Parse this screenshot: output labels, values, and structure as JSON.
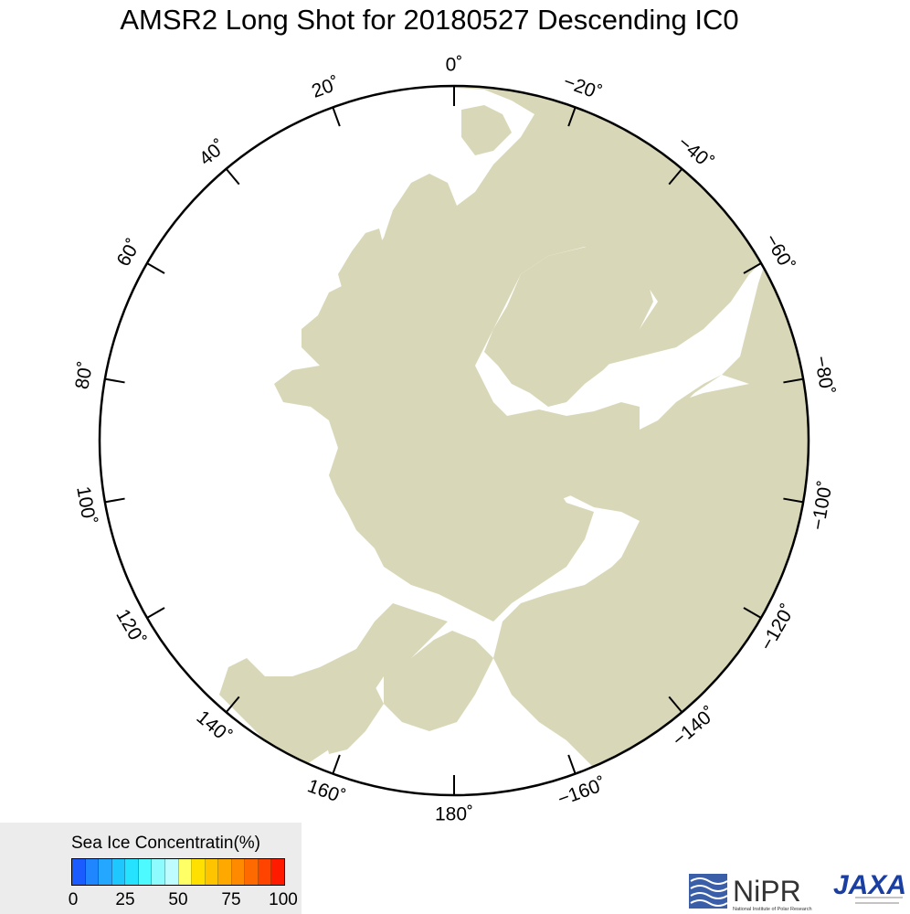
{
  "title": "AMSR2 Long Shot for 20180527 Descending IC0",
  "map": {
    "land_color": "#d8d8b8",
    "ocean_ice_color": "#ffffff",
    "longitude_labels": [
      "0˚",
      "20˚",
      "40˚",
      "60˚",
      "80˚",
      "100˚",
      "120˚",
      "140˚",
      "160˚",
      "180˚",
      "−160˚",
      "−140˚",
      "−120˚",
      "−100˚",
      "−80˚",
      "−60˚",
      "−40˚",
      "−20˚"
    ]
  },
  "legend": {
    "title": "Sea Ice Concentratin(%)",
    "ticks": [
      "0",
      "25",
      "50",
      "75",
      "100"
    ],
    "colors": [
      "#1a5cff",
      "#1f86ff",
      "#24a8ff",
      "#1ec8ff",
      "#25e2ff",
      "#4dfaff",
      "#8efcff",
      "#bffcff",
      "#ffff66",
      "#ffe000",
      "#ffc400",
      "#ffa800",
      "#ff8a00",
      "#ff6a00",
      "#ff4400",
      "#ff1a00"
    ]
  },
  "logos": {
    "nipr": "NiPR",
    "nipr_sub": "National Institute of Polar Research",
    "jaxa": "JAXA",
    "nipr_icon": "nipr-logo-icon",
    "jaxa_icon": "jaxa-logo-icon"
  }
}
